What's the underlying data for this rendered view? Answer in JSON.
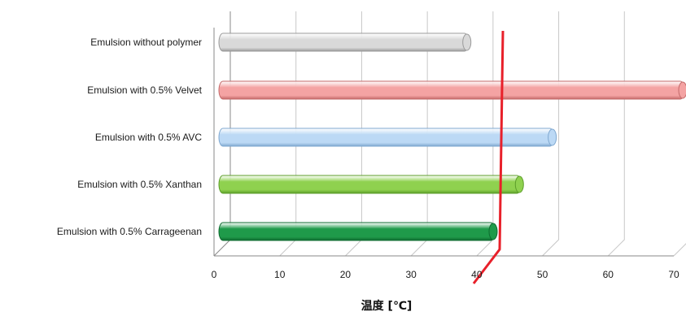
{
  "chart_data": {
    "type": "bar",
    "orientation": "horizontal",
    "title": "",
    "xlabel": "温度 [℃]",
    "ylabel": "",
    "xlim": [
      0,
      70
    ],
    "xticks": [
      0,
      10,
      20,
      30,
      40,
      50,
      60,
      70
    ],
    "tick_labels": [
      "0",
      "10",
      "20",
      "30",
      "40",
      "50",
      "60",
      "70"
    ],
    "grid": true,
    "categories": [
      "Emulsion without polymer",
      "Emulsion with 0.5% Velvet",
      "Emulsion with 0.5% AVC",
      "Emulsion with 0.5% Xanthan",
      "Emulsion with 0.5% Carrageenan"
    ],
    "values": [
      38,
      71,
      51,
      46,
      42
    ],
    "colors": [
      "#d9d9d9",
      "#f4a3a3",
      "#bcd9f5",
      "#8fd14f",
      "#1f9a4a"
    ],
    "edge_colors": [
      "#9a9a9a",
      "#c46a6a",
      "#7fa8d0",
      "#5c9e2a",
      "#0f6b30"
    ],
    "reference_line": {
      "value": 42,
      "color": "#e8202a"
    }
  }
}
